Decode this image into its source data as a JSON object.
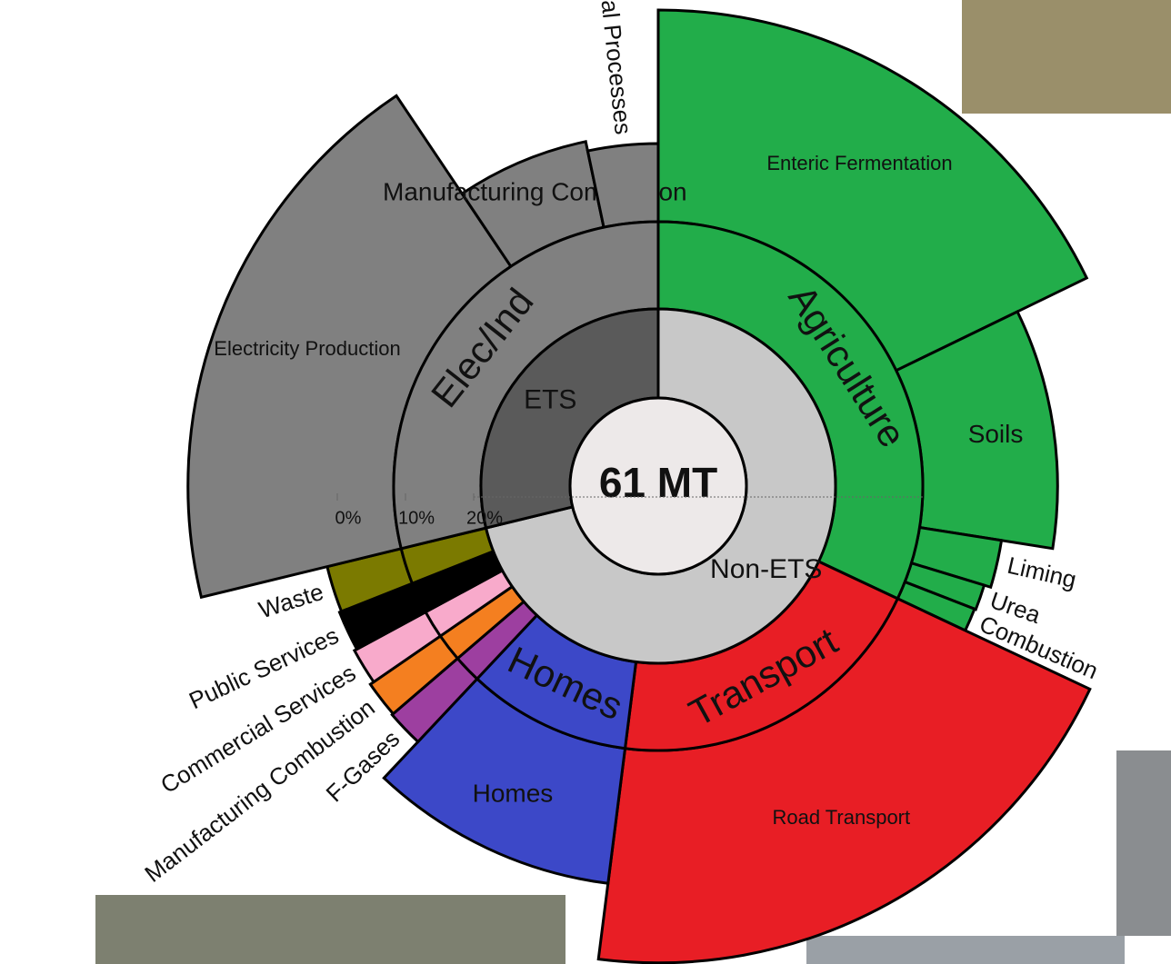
{
  "chart_data": {
    "type": "sunburst",
    "center_label": "61 MT",
    "rlim": [
      0,
      20
    ],
    "rticks": [
      {
        "value": 0,
        "label": "0%"
      },
      {
        "value": 10,
        "label": "10%"
      },
      {
        "value": 20,
        "label": "20%"
      }
    ],
    "groups": [
      {
        "name": "Non-ETS",
        "color": "#c8c8c8",
        "share": 71.2
      },
      {
        "name": "ETS",
        "color": "#5a5a5a",
        "share": 28.8
      }
    ],
    "sectors": [
      {
        "name": "Agriculture",
        "color": "#22ad4a",
        "share": 32,
        "children": [
          {
            "name": "Enteric Fermentation",
            "share": 17.8,
            "value": 20.4
          },
          {
            "name": "Soils",
            "share": 9.7,
            "value": 9.1
          },
          {
            "name": "Liming",
            "share": 2.2,
            "value": 1.5
          },
          {
            "name": "Urea",
            "share": 1.2,
            "value": 0.5
          },
          {
            "name": "Combustion",
            "share": 1.1,
            "value": 0.3
          }
        ]
      },
      {
        "name": "Transport",
        "color": "#e81e25",
        "share": 20,
        "children": [
          {
            "name": "Road Transport",
            "share": 20,
            "value": 20.5
          }
        ]
      },
      {
        "name": "Homes",
        "color": "#3c48c8",
        "share": 10,
        "children": [
          {
            "name": "Homes",
            "share": 10,
            "value": 9.3
          }
        ]
      },
      {
        "name": null,
        "color": "#9d3fa0",
        "share": 1.7,
        "children": [
          {
            "name": "F-Gases",
            "share": 1.7,
            "value": 2.0
          }
        ]
      },
      {
        "name": null,
        "color": "#f47f20",
        "share": 1.7,
        "children": [
          {
            "name": "Manufacturing Combustion",
            "share": 1.7,
            "value": 1.8
          }
        ]
      },
      {
        "name": null,
        "color": "#f8aacb",
        "share": 1.7,
        "children": [
          {
            "name": "Commercial Services",
            "share": 1.7,
            "value": 1.2
          }
        ]
      },
      {
        "name": null,
        "color": "#000000",
        "share": 1.9,
        "children": [
          {
            "name": "Public Services",
            "share": 1.9,
            "value": 0.8
          }
        ]
      },
      {
        "name": null,
        "color": "#7b7a00",
        "share": 2.2,
        "children": [
          {
            "name": "Waste",
            "share": 2.2,
            "value": 0.5
          }
        ]
      },
      {
        "name": "Elec/Ind",
        "color": "#808080",
        "share": 28.8,
        "children": [
          {
            "name": "Electricity Production",
            "share": 19.4,
            "value": 19.5
          },
          {
            "name": "Manufacturing Combustion",
            "share": 6.1,
            "value": 2.2
          },
          {
            "name": "Industrial Processes",
            "share": 3.3,
            "value": 0.8
          }
        ]
      }
    ]
  }
}
